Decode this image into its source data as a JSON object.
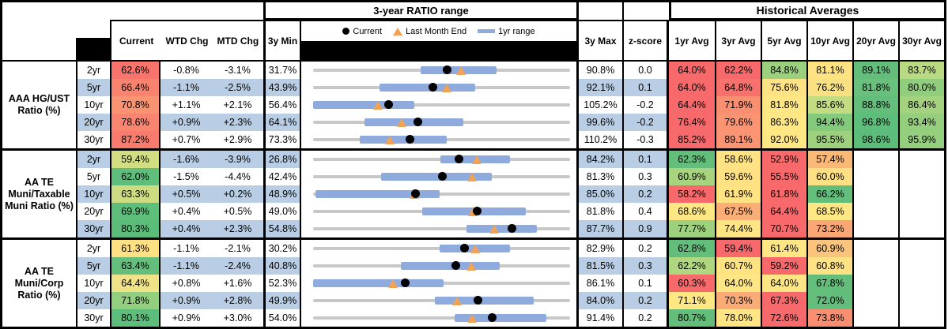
{
  "titles": {
    "range": "3-year RATIO range",
    "hist": "Historical Averages"
  },
  "columns": {
    "current": "Current",
    "wtd": "WTD Chg",
    "mtd": "MTD Chg",
    "min": "3y Min",
    "max": "3y Max",
    "z": "z-score",
    "avgs": [
      "1yr Avg",
      "3yr Avg",
      "5yr Avg",
      "10yr Avg",
      "20yr Avg",
      "30yr Avg"
    ]
  },
  "legend": [
    {
      "marker": "black-dot",
      "label": "Current"
    },
    {
      "marker": "orange-triangle",
      "label": "Last Month End"
    },
    {
      "marker": "blue-bar",
      "label": "1yr range"
    }
  ],
  "colors": {
    "band_blue": "#B9CDE4",
    "track_gray": "#C8C8C8",
    "bar_blue": "#8FAADC",
    "triangle_orange": "#F2A254",
    "dot_black": "#000000",
    "header_black": "#000000",
    "scale_red": "#F8696B",
    "scale_yellow": "#FFE484",
    "scale_green": "#63BE7B"
  },
  "chart_data": {
    "type": "table",
    "note": "Each row: bullet chart from 3y Min to 3y Max; blue bar = 1yr range; dot = Current; triangle = Last Month End (Current - MTD Chg).",
    "groups": [
      {
        "label": "AAA HG/UST Ratio (%)",
        "rows": [
          {
            "tenor": "2yr",
            "current": "62.6%",
            "cur": 62.6,
            "cur_color": "#F8746D",
            "wtd": "-0.8%",
            "mtd": "-3.1%",
            "min": 31.7,
            "min_d": "31.7%",
            "max": 90.8,
            "max_d": "90.8%",
            "z": "0.0",
            "lme": 65.7,
            "bar": [
              56.4,
              73.8
            ],
            "band": false,
            "avgs": [
              {
                "v": "64.0%",
                "c": "#F8696B"
              },
              {
                "v": "62.2%",
                "c": "#F8696B"
              },
              {
                "v": "84.8%",
                "c": "#9BD07E"
              },
              {
                "v": "81.1%",
                "c": "#FFE383"
              },
              {
                "v": "89.1%",
                "c": "#63BE7B"
              },
              {
                "v": "83.7%",
                "c": "#B9DA80"
              }
            ]
          },
          {
            "tenor": "5yr",
            "current": "66.4%",
            "cur": 66.4,
            "cur_color": "#F9836F",
            "wtd": "-1.1%",
            "mtd": "-2.5%",
            "min": 43.9,
            "min_d": "43.9%",
            "max": 92.1,
            "max_d": "92.1%",
            "z": "0.1",
            "lme": 68.9,
            "bar": [
              56.3,
              74.3
            ],
            "band": true,
            "avgs": [
              {
                "v": "64.0%",
                "c": "#F8696B"
              },
              {
                "v": "64.8%",
                "c": "#F8716C"
              },
              {
                "v": "75.6%",
                "c": "#FFE283"
              },
              {
                "v": "76.2%",
                "c": "#F9E183"
              },
              {
                "v": "81.8%",
                "c": "#68C07C"
              },
              {
                "v": "80.0%",
                "c": "#90CE7D"
              }
            ]
          },
          {
            "tenor": "10yr",
            "current": "70.8%",
            "cur": 70.8,
            "cur_color": "#FA9372",
            "wtd": "+1.1%",
            "mtd": "+2.1%",
            "min": 56.4,
            "min_d": "56.4%",
            "max": 105.2,
            "max_d": "105.2%",
            "z": "-0.2",
            "lme": 68.7,
            "bar": [
              56.4,
              75.6
            ],
            "band": false,
            "avgs": [
              {
                "v": "64.4%",
                "c": "#F8696B"
              },
              {
                "v": "71.9%",
                "c": "#F98E71"
              },
              {
                "v": "81.8%",
                "c": "#FFE684"
              },
              {
                "v": "85.6%",
                "c": "#C3DC81"
              },
              {
                "v": "88.8%",
                "c": "#63BE7B"
              },
              {
                "v": "86.4%",
                "c": "#A4D27E"
              }
            ]
          },
          {
            "tenor": "20yr",
            "current": "78.6%",
            "cur": 78.6,
            "cur_color": "#F98570",
            "wtd": "+0.9%",
            "mtd": "+2.3%",
            "min": 64.1,
            "min_d": "64.1%",
            "max": 99.6,
            "max_d": "99.6%",
            "z": "-0.2",
            "lme": 76.3,
            "bar": [
              71.2,
              84.8
            ],
            "band": true,
            "avgs": [
              {
                "v": "76.4%",
                "c": "#F8696B"
              },
              {
                "v": "79.6%",
                "c": "#FA9473"
              },
              {
                "v": "86.3%",
                "c": "#FFE884"
              },
              {
                "v": "94.4%",
                "c": "#84CA7C"
              },
              {
                "v": "96.8%",
                "c": "#5DBD7A"
              },
              {
                "v": "93.4%",
                "c": "#95CF7E"
              }
            ]
          },
          {
            "tenor": "30yr",
            "current": "87.2%",
            "cur": 87.2,
            "cur_color": "#F87B6E",
            "wtd": "+0.7%",
            "mtd": "+2.9%",
            "min": 73.3,
            "min_d": "73.3%",
            "max": 110.2,
            "max_d": "110.2%",
            "z": "-0.3",
            "lme": 84.3,
            "bar": [
              80.0,
              92.5
            ],
            "band": false,
            "avgs": [
              {
                "v": "85.2%",
                "c": "#F8696B"
              },
              {
                "v": "89.1%",
                "c": "#FA9473"
              },
              {
                "v": "92.0%",
                "c": "#FFE884"
              },
              {
                "v": "95.5%",
                "c": "#9DD17E"
              },
              {
                "v": "98.6%",
                "c": "#5CBD7A"
              },
              {
                "v": "95.9%",
                "c": "#94CF7D"
              }
            ]
          }
        ]
      },
      {
        "label": "AA TE Muni/Taxable Muni Ratio (%)",
        "rows": [
          {
            "tenor": "2yr",
            "current": "59.4%",
            "cur": 59.4,
            "cur_color": "#D3DE83",
            "wtd": "-1.6%",
            "mtd": "-3.9%",
            "min": 26.8,
            "min_d": "26.8%",
            "max": 84.2,
            "max_d": "84.2%",
            "z": "0.1",
            "lme": 63.3,
            "bar": [
              55.2,
              70.7
            ],
            "band": true,
            "avgs": [
              {
                "v": "62.3%",
                "c": "#63BE7B"
              },
              {
                "v": "58.6%",
                "c": "#FFE283"
              },
              {
                "v": "52.9%",
                "c": "#F8696B"
              },
              {
                "v": "57.4%",
                "c": "#FBB977"
              },
              {
                "v": "",
                "c": "#FFFFFF"
              },
              {
                "v": "",
                "c": "#FFFFFF"
              }
            ]
          },
          {
            "tenor": "5yr",
            "current": "62.0%",
            "cur": 62.0,
            "cur_color": "#5FBE7B",
            "wtd": "-1.5%",
            "mtd": "-4.4%",
            "min": 42.4,
            "min_d": "42.4%",
            "max": 81.3,
            "max_d": "81.3%",
            "z": "0.3",
            "lme": 66.4,
            "bar": [
              52.7,
              69.5
            ],
            "band": false,
            "avgs": [
              {
                "v": "60.9%",
                "c": "#A8D47F"
              },
              {
                "v": "59.6%",
                "c": "#FFE183"
              },
              {
                "v": "55.5%",
                "c": "#F8696B"
              },
              {
                "v": "60.0%",
                "c": "#FCE083"
              },
              {
                "v": "",
                "c": "#FFFFFF"
              },
              {
                "v": "",
                "c": "#FFFFFF"
              }
            ]
          },
          {
            "tenor": "10yr",
            "current": "63.3%",
            "cur": 63.3,
            "cur_color": "#CDDC82",
            "wtd": "+0.5%",
            "mtd": "+0.2%",
            "min": 48.9,
            "min_d": "48.9%",
            "max": 85.0,
            "max_d": "85.0%",
            "z": "0.2",
            "lme": 63.1,
            "bar": [
              49.2,
              66.7
            ],
            "band": true,
            "avgs": [
              {
                "v": "58.2%",
                "c": "#F8696B"
              },
              {
                "v": "61.9%",
                "c": "#FFE383"
              },
              {
                "v": "61.8%",
                "c": "#F8696B"
              },
              {
                "v": "66.2%",
                "c": "#63BE7B"
              },
              {
                "v": "",
                "c": "#FFFFFF"
              },
              {
                "v": "",
                "c": "#FFFFFF"
              }
            ]
          },
          {
            "tenor": "20yr",
            "current": "69.9%",
            "cur": 69.9,
            "cur_color": "#5EBE7B",
            "wtd": "+0.4%",
            "mtd": "+0.5%",
            "min": 49.0,
            "min_d": "49.0%",
            "max": 81.8,
            "max_d": "81.8%",
            "z": "0.4",
            "lme": 69.4,
            "bar": [
              62.9,
              76.1
            ],
            "band": false,
            "avgs": [
              {
                "v": "68.6%",
                "c": "#FFE784"
              },
              {
                "v": "67.5%",
                "c": "#FCAE77"
              },
              {
                "v": "64.4%",
                "c": "#F8696B"
              },
              {
                "v": "68.5%",
                "c": "#FFE784"
              },
              {
                "v": "",
                "c": "#FFFFFF"
              },
              {
                "v": "",
                "c": "#FFFFFF"
              }
            ]
          },
          {
            "tenor": "30yr",
            "current": "80.3%",
            "cur": 80.3,
            "cur_color": "#5CBD7A",
            "wtd": "+0.4%",
            "mtd": "+2.3%",
            "min": 54.8,
            "min_d": "54.8%",
            "max": 87.7,
            "max_d": "87.7%",
            "z": "0.9",
            "lme": 78.0,
            "bar": [
              74.4,
              83.4
            ],
            "band": true,
            "avgs": [
              {
                "v": "77.7%",
                "c": "#9ED17E"
              },
              {
                "v": "74.4%",
                "c": "#FFE583"
              },
              {
                "v": "70.7%",
                "c": "#F8696B"
              },
              {
                "v": "73.2%",
                "c": "#FBA675"
              },
              {
                "v": "",
                "c": "#FFFFFF"
              },
              {
                "v": "",
                "c": "#FFFFFF"
              }
            ]
          }
        ]
      },
      {
        "label": "AA TE Muni/Corp Ratio (%)",
        "rows": [
          {
            "tenor": "2yr",
            "current": "61.3%",
            "cur": 61.3,
            "cur_color": "#FFE183",
            "wtd": "-1.1%",
            "mtd": "-2.1%",
            "min": 30.2,
            "min_d": "30.2%",
            "max": 82.9,
            "max_d": "82.9%",
            "z": "0.2",
            "lme": 63.4,
            "bar": [
              56.2,
              70.6
            ],
            "band": false,
            "avgs": [
              {
                "v": "62.8%",
                "c": "#63BE7B"
              },
              {
                "v": "59.4%",
                "c": "#F8696B"
              },
              {
                "v": "61.4%",
                "c": "#FFE583"
              },
              {
                "v": "60.9%",
                "c": "#FBC47D"
              },
              {
                "v": "",
                "c": "#FFFFFF"
              },
              {
                "v": "",
                "c": "#FFFFFF"
              }
            ]
          },
          {
            "tenor": "5yr",
            "current": "63.4%",
            "cur": 63.4,
            "cur_color": "#63BF7B",
            "wtd": "-1.1%",
            "mtd": "-2.4%",
            "min": 40.8,
            "min_d": "40.8%",
            "max": 81.5,
            "max_d": "81.5%",
            "z": "0.3",
            "lme": 65.8,
            "bar": [
              54.7,
              70.4
            ],
            "band": true,
            "avgs": [
              {
                "v": "62.2%",
                "c": "#AFD77F"
              },
              {
                "v": "60.7%",
                "c": "#FFE383"
              },
              {
                "v": "59.2%",
                "c": "#F8696B"
              },
              {
                "v": "60.8%",
                "c": "#FFE283"
              },
              {
                "v": "",
                "c": "#FFFFFF"
              },
              {
                "v": "",
                "c": "#FFFFFF"
              }
            ]
          },
          {
            "tenor": "10yr",
            "current": "64.4%",
            "cur": 64.4,
            "cur_color": "#EFE287",
            "wtd": "+0.8%",
            "mtd": "+1.6%",
            "min": 52.3,
            "min_d": "52.3%",
            "max": 86.1,
            "max_d": "86.1%",
            "z": "0.1",
            "lme": 62.8,
            "bar": [
              52.3,
              69.5
            ],
            "band": false,
            "avgs": [
              {
                "v": "60.3%",
                "c": "#F8696B"
              },
              {
                "v": "64.0%",
                "c": "#FFE684"
              },
              {
                "v": "64.0%",
                "c": "#FFE684"
              },
              {
                "v": "67.8%",
                "c": "#63BE7B"
              },
              {
                "v": "",
                "c": "#FFFFFF"
              },
              {
                "v": "",
                "c": "#FFFFFF"
              }
            ]
          },
          {
            "tenor": "20yr",
            "current": "71.8%",
            "cur": 71.8,
            "cur_color": "#92CF7E",
            "wtd": "+0.9%",
            "mtd": "+2.8%",
            "min": 49.9,
            "min_d": "49.9%",
            "max": 84.0,
            "max_d": "84.0%",
            "z": "0.2",
            "lme": 69.0,
            "bar": [
              66.1,
              79.2
            ],
            "band": true,
            "avgs": [
              {
                "v": "71.1%",
                "c": "#FFE784"
              },
              {
                "v": "70.3%",
                "c": "#FBAC76"
              },
              {
                "v": "67.3%",
                "c": "#F8696B"
              },
              {
                "v": "72.0%",
                "c": "#63BE7B"
              },
              {
                "v": "",
                "c": "#FFFFFF"
              },
              {
                "v": "",
                "c": "#FFFFFF"
              }
            ]
          },
          {
            "tenor": "30yr",
            "current": "80.1%",
            "cur": 80.1,
            "cur_color": "#5DBE7B",
            "wtd": "+0.9%",
            "mtd": "+3.0%",
            "min": 54.0,
            "min_d": "54.0%",
            "max": 91.4,
            "max_d": "91.4%",
            "z": "0.2",
            "lme": 77.1,
            "bar": [
              74.6,
              88.0
            ],
            "band": false,
            "avgs": [
              {
                "v": "80.7%",
                "c": "#63BE7B"
              },
              {
                "v": "78.0%",
                "c": "#FFE583"
              },
              {
                "v": "72.6%",
                "c": "#F8696B"
              },
              {
                "v": "73.8%",
                "c": "#FA8E71"
              },
              {
                "v": "",
                "c": "#FFFFFF"
              },
              {
                "v": "",
                "c": "#FFFFFF"
              }
            ]
          }
        ]
      }
    ]
  }
}
